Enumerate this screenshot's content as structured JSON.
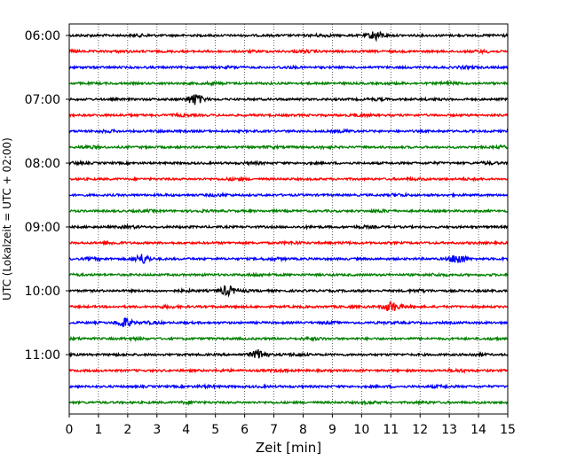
{
  "chart_data": {
    "type": "line",
    "xlabel": "Zeit  [min]",
    "ylabel": "UTC (Lokalzeit = UTC + 02:00)",
    "xlim": [
      0,
      15
    ],
    "x_ticks": [
      "0",
      "1",
      "2",
      "3",
      "4",
      "5",
      "6",
      "7",
      "8",
      "9",
      "10",
      "11",
      "12",
      "13",
      "14",
      "15"
    ],
    "y_ticks": [
      "06:00",
      "07:00",
      "08:00",
      "09:00",
      "10:00",
      "11:00"
    ],
    "trace_start": "06:00",
    "trace_end": "11:45",
    "trace_interval_min": 15,
    "trace_colors": [
      "#000000",
      "#ff0000",
      "#0000ff",
      "#008000"
    ],
    "grid": "vertical dotted lines at each minute",
    "notable_events": [
      {
        "trace": "06:00",
        "minute": 10.5
      },
      {
        "trace": "07:00",
        "minute": 4.3
      },
      {
        "trace": "09:30",
        "minute": 2.5
      },
      {
        "trace": "09:30",
        "minute": 13.3
      },
      {
        "trace": "10:00",
        "minute": 5.4
      },
      {
        "trace": "10:15",
        "minute": 11.0
      },
      {
        "trace": "10:30",
        "minute": 1.9
      },
      {
        "trace": "11:00",
        "minute": 6.5
      }
    ]
  }
}
